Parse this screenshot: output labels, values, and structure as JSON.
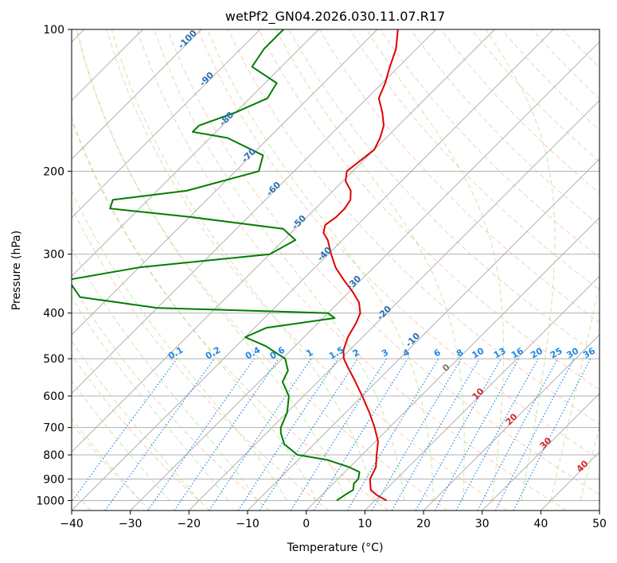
{
  "chart_data": {
    "type": "line",
    "subtype": "skew-t log-p diagram",
    "title": "wetPf2_GN04.2026.030.11.07.R17",
    "xlabel": "Temperature (°C)",
    "ylabel": "Pressure (hPa)",
    "xlim": [
      -40,
      50
    ],
    "ylim": [
      1050,
      100
    ],
    "y_scale": "log",
    "x_ticks": [
      -40,
      -30,
      -20,
      -10,
      0,
      10,
      20,
      30,
      40,
      50
    ],
    "x_tick_labels": [
      "−40",
      "−30",
      "−20",
      "−10",
      "0",
      "10",
      "20",
      "30",
      "40",
      "50"
    ],
    "y_ticks": [
      100,
      200,
      300,
      400,
      500,
      600,
      700,
      800,
      900,
      1000
    ],
    "y_tick_labels": [
      "100",
      "200",
      "300",
      "400",
      "500",
      "600",
      "700",
      "800",
      "900",
      "1000"
    ],
    "grid": true,
    "series": [
      {
        "role": "temperature",
        "color": "#e00000",
        "points": [
          [
            1000,
            12.0
          ],
          [
            975,
            9.5
          ],
          [
            950,
            7.5
          ],
          [
            925,
            6.5
          ],
          [
            900,
            5.5
          ],
          [
            875,
            5.0
          ],
          [
            850,
            4.5
          ],
          [
            800,
            2.5
          ],
          [
            750,
            0.5
          ],
          [
            700,
            -2.5
          ],
          [
            650,
            -6.0
          ],
          [
            600,
            -10.0
          ],
          [
            550,
            -14.5
          ],
          [
            520,
            -17.5
          ],
          [
            500,
            -19.5
          ],
          [
            480,
            -21.0
          ],
          [
            450,
            -22.5
          ],
          [
            420,
            -23.5
          ],
          [
            400,
            -24.5
          ],
          [
            380,
            -26.5
          ],
          [
            360,
            -29.5
          ],
          [
            340,
            -33.0
          ],
          [
            320,
            -36.5
          ],
          [
            300,
            -39.5
          ],
          [
            280,
            -42.5
          ],
          [
            270,
            -44.5
          ],
          [
            260,
            -45.5
          ],
          [
            250,
            -45.0
          ],
          [
            240,
            -45.0
          ],
          [
            230,
            -45.5
          ],
          [
            220,
            -47.0
          ],
          [
            210,
            -49.5
          ],
          [
            200,
            -51.0
          ],
          [
            190,
            -50.5
          ],
          [
            180,
            -50.0
          ],
          [
            170,
            -51.0
          ],
          [
            160,
            -52.5
          ],
          [
            150,
            -55.0
          ],
          [
            140,
            -58.0
          ],
          [
            130,
            -59.5
          ],
          [
            120,
            -61.5
          ],
          [
            110,
            -63.5
          ],
          [
            100,
            -66.5
          ]
        ]
      },
      {
        "role": "dewpoint",
        "color": "#007d00",
        "points": [
          [
            1000,
            3.5
          ],
          [
            970,
            4.0
          ],
          [
            950,
            4.5
          ],
          [
            920,
            3.5
          ],
          [
            900,
            3.5
          ],
          [
            870,
            2.5
          ],
          [
            850,
            0.0
          ],
          [
            820,
            -5.0
          ],
          [
            800,
            -11.0
          ],
          [
            760,
            -15.0
          ],
          [
            720,
            -17.5
          ],
          [
            700,
            -18.5
          ],
          [
            650,
            -20.0
          ],
          [
            600,
            -22.5
          ],
          [
            560,
            -26.0
          ],
          [
            530,
            -27.0
          ],
          [
            500,
            -29.5
          ],
          [
            470,
            -35.0
          ],
          [
            450,
            -40.0
          ],
          [
            430,
            -38.0
          ],
          [
            410,
            -28.0
          ],
          [
            400,
            -30.0
          ],
          [
            390,
            -60.0
          ],
          [
            370,
            -75.0
          ],
          [
            340,
            -80.0
          ],
          [
            320,
            -70.0
          ],
          [
            300,
            -50.0
          ],
          [
            280,
            -48.0
          ],
          [
            265,
            -52.0
          ],
          [
            250,
            -70.0
          ],
          [
            240,
            -85.0
          ],
          [
            230,
            -86.0
          ],
          [
            220,
            -75.0
          ],
          [
            200,
            -66.0
          ],
          [
            185,
            -68.0
          ],
          [
            170,
            -77.0
          ],
          [
            165,
            -84.0
          ],
          [
            160,
            -84.0
          ],
          [
            150,
            -80.0
          ],
          [
            140,
            -77.0
          ],
          [
            130,
            -78.0
          ],
          [
            120,
            -85.0
          ],
          [
            110,
            -86.0
          ],
          [
            100,
            -86.0
          ]
        ]
      }
    ],
    "background_lines": {
      "isotherms": {
        "color": "#b0b0b0",
        "style": "solid"
      },
      "dry_adiabats": {
        "color": "#f4a582",
        "style": "dashed"
      },
      "moist_adiabats": {
        "color": "#a6d96a",
        "style": "dashed"
      },
      "mixing_ratio_lines": {
        "color": "#1e88e5",
        "style": "dotted"
      }
    },
    "annotations": {
      "isotherm_labels": [
        "-100",
        "-90",
        "-80",
        "-70",
        "-60",
        "-50",
        "-40",
        "-30",
        "-20",
        "-10",
        "0",
        "10",
        "20",
        "30",
        "40"
      ],
      "mixing_ratio_labels": [
        "0.1",
        "0.2",
        "0.4",
        "0.6",
        "1",
        "1.5",
        "2",
        "3",
        "4",
        "6",
        "8",
        "10",
        "13",
        "16",
        "20",
        "25",
        "30",
        "36"
      ]
    }
  }
}
